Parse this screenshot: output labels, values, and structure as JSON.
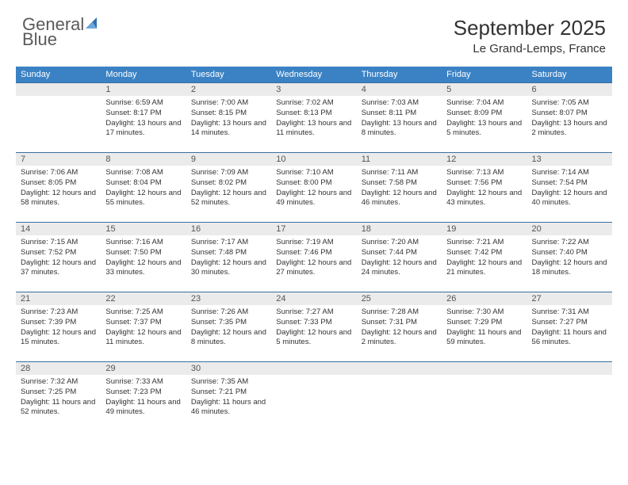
{
  "brand": {
    "word1": "General",
    "word2": "Blue"
  },
  "title": "September 2025",
  "location": "Le Grand-Lemps, France",
  "colors": {
    "header_bg": "#3b82c4",
    "header_text": "#ffffff",
    "daynum_bg": "#ebebeb",
    "row_border": "#3b6fa0",
    "body_text": "#333333",
    "brand_gray": "#5a5a5a",
    "brand_blue": "#3b7fc4"
  },
  "weekdays": [
    "Sunday",
    "Monday",
    "Tuesday",
    "Wednesday",
    "Thursday",
    "Friday",
    "Saturday"
  ],
  "first_weekday_index": 1,
  "days": [
    {
      "n": 1,
      "sunrise": "6:59 AM",
      "sunset": "8:17 PM",
      "daylight": "13 hours and 17 minutes."
    },
    {
      "n": 2,
      "sunrise": "7:00 AM",
      "sunset": "8:15 PM",
      "daylight": "13 hours and 14 minutes."
    },
    {
      "n": 3,
      "sunrise": "7:02 AM",
      "sunset": "8:13 PM",
      "daylight": "13 hours and 11 minutes."
    },
    {
      "n": 4,
      "sunrise": "7:03 AM",
      "sunset": "8:11 PM",
      "daylight": "13 hours and 8 minutes."
    },
    {
      "n": 5,
      "sunrise": "7:04 AM",
      "sunset": "8:09 PM",
      "daylight": "13 hours and 5 minutes."
    },
    {
      "n": 6,
      "sunrise": "7:05 AM",
      "sunset": "8:07 PM",
      "daylight": "13 hours and 2 minutes."
    },
    {
      "n": 7,
      "sunrise": "7:06 AM",
      "sunset": "8:05 PM",
      "daylight": "12 hours and 58 minutes."
    },
    {
      "n": 8,
      "sunrise": "7:08 AM",
      "sunset": "8:04 PM",
      "daylight": "12 hours and 55 minutes."
    },
    {
      "n": 9,
      "sunrise": "7:09 AM",
      "sunset": "8:02 PM",
      "daylight": "12 hours and 52 minutes."
    },
    {
      "n": 10,
      "sunrise": "7:10 AM",
      "sunset": "8:00 PM",
      "daylight": "12 hours and 49 minutes."
    },
    {
      "n": 11,
      "sunrise": "7:11 AM",
      "sunset": "7:58 PM",
      "daylight": "12 hours and 46 minutes."
    },
    {
      "n": 12,
      "sunrise": "7:13 AM",
      "sunset": "7:56 PM",
      "daylight": "12 hours and 43 minutes."
    },
    {
      "n": 13,
      "sunrise": "7:14 AM",
      "sunset": "7:54 PM",
      "daylight": "12 hours and 40 minutes."
    },
    {
      "n": 14,
      "sunrise": "7:15 AM",
      "sunset": "7:52 PM",
      "daylight": "12 hours and 37 minutes."
    },
    {
      "n": 15,
      "sunrise": "7:16 AM",
      "sunset": "7:50 PM",
      "daylight": "12 hours and 33 minutes."
    },
    {
      "n": 16,
      "sunrise": "7:17 AM",
      "sunset": "7:48 PM",
      "daylight": "12 hours and 30 minutes."
    },
    {
      "n": 17,
      "sunrise": "7:19 AM",
      "sunset": "7:46 PM",
      "daylight": "12 hours and 27 minutes."
    },
    {
      "n": 18,
      "sunrise": "7:20 AM",
      "sunset": "7:44 PM",
      "daylight": "12 hours and 24 minutes."
    },
    {
      "n": 19,
      "sunrise": "7:21 AM",
      "sunset": "7:42 PM",
      "daylight": "12 hours and 21 minutes."
    },
    {
      "n": 20,
      "sunrise": "7:22 AM",
      "sunset": "7:40 PM",
      "daylight": "12 hours and 18 minutes."
    },
    {
      "n": 21,
      "sunrise": "7:23 AM",
      "sunset": "7:39 PM",
      "daylight": "12 hours and 15 minutes."
    },
    {
      "n": 22,
      "sunrise": "7:25 AM",
      "sunset": "7:37 PM",
      "daylight": "12 hours and 11 minutes."
    },
    {
      "n": 23,
      "sunrise": "7:26 AM",
      "sunset": "7:35 PM",
      "daylight": "12 hours and 8 minutes."
    },
    {
      "n": 24,
      "sunrise": "7:27 AM",
      "sunset": "7:33 PM",
      "daylight": "12 hours and 5 minutes."
    },
    {
      "n": 25,
      "sunrise": "7:28 AM",
      "sunset": "7:31 PM",
      "daylight": "12 hours and 2 minutes."
    },
    {
      "n": 26,
      "sunrise": "7:30 AM",
      "sunset": "7:29 PM",
      "daylight": "11 hours and 59 minutes."
    },
    {
      "n": 27,
      "sunrise": "7:31 AM",
      "sunset": "7:27 PM",
      "daylight": "11 hours and 56 minutes."
    },
    {
      "n": 28,
      "sunrise": "7:32 AM",
      "sunset": "7:25 PM",
      "daylight": "11 hours and 52 minutes."
    },
    {
      "n": 29,
      "sunrise": "7:33 AM",
      "sunset": "7:23 PM",
      "daylight": "11 hours and 49 minutes."
    },
    {
      "n": 30,
      "sunrise": "7:35 AM",
      "sunset": "7:21 PM",
      "daylight": "11 hours and 46 minutes."
    }
  ],
  "labels": {
    "sunrise": "Sunrise:",
    "sunset": "Sunset:",
    "daylight": "Daylight:"
  }
}
